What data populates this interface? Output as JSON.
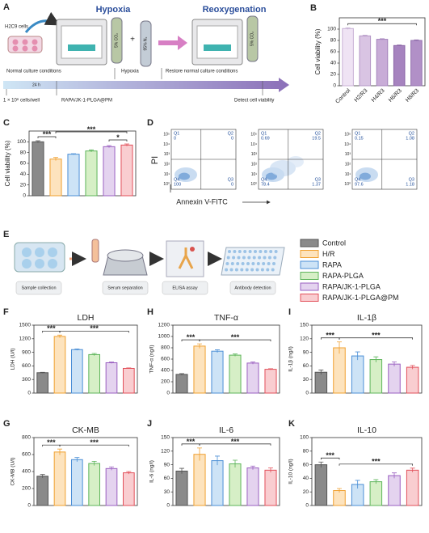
{
  "panel_a": {
    "label": "A",
    "hypoxia": "Hypoxia",
    "reoxygenation": "Reoxygenation",
    "cells": "H2C9 cells",
    "co2_left": "5% CO₂",
    "n2": "95% N₂",
    "co2_right": "5% CO₂",
    "plus": "+",
    "timeline": {
      "normal": "Normal culture conditions",
      "hypoxia": "Hypoxia",
      "restore": "Restore normal culture conditions",
      "duration": "24 h",
      "seeding": "1 × 10⁶ cells/well",
      "treatment": "RAPA/JK-1-PLGA@PM",
      "detect": "Detect cell viability"
    }
  },
  "panel_d": {
    "label": "D",
    "y_label": "PI",
    "x_label": "Annexin V-FITC",
    "yticks": [
      "10⁰",
      "10¹",
      "10²",
      "10³",
      "10⁴",
      "10⁵"
    ],
    "plots": [
      {
        "quadrants": [
          {
            "name": "Q1",
            "value": 0
          },
          {
            "name": "Q2",
            "value": 0
          },
          {
            "name": "Q4",
            "value": 100
          },
          {
            "name": "Q3",
            "value": 0
          }
        ]
      },
      {
        "quadrants": [
          {
            "name": "Q1",
            "value": 0.69
          },
          {
            "name": "Q2",
            "value": 19.5
          },
          {
            "name": "Q4",
            "value": 78.4
          },
          {
            "name": "Q3",
            "value": 1.37
          }
        ]
      },
      {
        "quadrants": [
          {
            "name": "Q1",
            "value": 0.15
          },
          {
            "name": "Q2",
            "value": 1.08
          },
          {
            "name": "Q4",
            "value": 97.6
          },
          {
            "name": "Q3",
            "value": 1.18
          }
        ]
      }
    ]
  },
  "panel_e": {
    "label": "E",
    "steps": [
      "Sample collection",
      "Serum separation",
      "ELISA assay",
      "Antibody detection"
    ],
    "legend": [
      {
        "name": "Control",
        "fill": "#8a8a8a",
        "edge": "#555555"
      },
      {
        "name": "H/R",
        "fill": "#fde3bd",
        "edge": "#f0a030"
      },
      {
        "name": "RAPA",
        "fill": "#cde3f6",
        "edge": "#4b8fd6"
      },
      {
        "name": "RAPA-PLGA",
        "fill": "#d6efc6",
        "edge": "#5db55a"
      },
      {
        "name": "RAPA/JK-1-PLGA",
        "fill": "#e4d3ef",
        "edge": "#9a5fc0"
      },
      {
        "name": "RAPA/JK-1-PLGA@PM",
        "fill": "#f9cdd0",
        "edge": "#e2505a"
      }
    ]
  },
  "chart_data": [
    {
      "type": "bar",
      "panel": "B",
      "y_label": "Cell viability (%)",
      "categories": [
        "Control",
        "H2/R3",
        "H4/R3",
        "H6/R3",
        "H8/R3"
      ],
      "values": [
        101,
        88,
        82,
        71,
        80
      ],
      "errors": [
        1.5,
        1,
        1,
        1,
        1
      ],
      "colors": [
        "#efe3f4",
        "#d9c4e3",
        "#c8acd7",
        "#a683bf",
        "#b190c7"
      ],
      "edge_colors": [
        "#c9b2d6",
        "#b497c6",
        "#a382bb",
        "#8a64a6",
        "#9270ad"
      ],
      "ylim": [
        0,
        120
      ],
      "yticks": [
        0,
        20,
        40,
        60,
        80,
        100
      ],
      "annotations": [
        "***"
      ]
    },
    {
      "type": "bar",
      "panel": "C",
      "y_label": "Cell viability (%)",
      "categories": [
        null,
        null,
        null,
        null,
        null,
        null
      ],
      "values": [
        100,
        68,
        77,
        83,
        91,
        94
      ],
      "errors": [
        2,
        3,
        1,
        2,
        2,
        2
      ],
      "colors": [
        "#8a8a8a",
        "#fde3bd",
        "#cde3f6",
        "#d6efc6",
        "#e4d3ef",
        "#f9cdd0"
      ],
      "edge_colors": [
        "#555555",
        "#f0a030",
        "#4b8fd6",
        "#5db55a",
        "#9a5fc0",
        "#e2505a"
      ],
      "ylim": [
        0,
        120
      ],
      "yticks": [
        0,
        20,
        40,
        60,
        80,
        100
      ],
      "annotations": [
        "***",
        "***",
        "*"
      ]
    },
    {
      "type": "bar",
      "panel": "F",
      "title": "LDH",
      "y_label": "LDH (U/l)",
      "categories": [
        null,
        null,
        null,
        null,
        null,
        null
      ],
      "values": [
        450,
        1250,
        960,
        850,
        670,
        545
      ],
      "errors": [
        10,
        30,
        15,
        25,
        15,
        10
      ],
      "colors": [
        "#8a8a8a",
        "#fde3bd",
        "#cde3f6",
        "#d6efc6",
        "#e4d3ef",
        "#f9cdd0"
      ],
      "edge_colors": [
        "#555555",
        "#f0a030",
        "#4b8fd6",
        "#5db55a",
        "#9a5fc0",
        "#e2505a"
      ],
      "ylim": [
        0,
        1500
      ],
      "yticks": [
        0,
        300,
        600,
        900,
        1200,
        1500
      ],
      "annotations": [
        "***",
        "***"
      ]
    },
    {
      "type": "bar",
      "panel": "H",
      "title": "TNF-α",
      "y_label": "TNF-α (ng/l)",
      "categories": [
        null,
        null,
        null,
        null,
        null,
        null
      ],
      "values": [
        330,
        830,
        740,
        670,
        530,
        420
      ],
      "errors": [
        15,
        40,
        25,
        20,
        20,
        10
      ],
      "colors": [
        "#8a8a8a",
        "#fde3bd",
        "#cde3f6",
        "#d6efc6",
        "#e4d3ef",
        "#f9cdd0"
      ],
      "edge_colors": [
        "#555555",
        "#f0a030",
        "#4b8fd6",
        "#5db55a",
        "#9a5fc0",
        "#e2505a"
      ],
      "ylim": [
        0,
        1200
      ],
      "yticks": [
        0,
        200,
        400,
        600,
        800,
        1000,
        1200
      ],
      "annotations": [
        "***",
        "***"
      ]
    },
    {
      "type": "bar",
      "panel": "I",
      "title": "IL-1β",
      "y_label": "IL-1β (ng/l)",
      "categories": [
        null,
        null,
        null,
        null,
        null,
        null
      ],
      "values": [
        46,
        100,
        82,
        74,
        64,
        57
      ],
      "errors": [
        5,
        13,
        9,
        6,
        5,
        4
      ],
      "colors": [
        "#8a8a8a",
        "#fde3bd",
        "#cde3f6",
        "#d6efc6",
        "#e4d3ef",
        "#f9cdd0"
      ],
      "edge_colors": [
        "#555555",
        "#f0a030",
        "#4b8fd6",
        "#5db55a",
        "#9a5fc0",
        "#e2505a"
      ],
      "ylim": [
        0,
        150
      ],
      "yticks": [
        0,
        30,
        60,
        90,
        120,
        150
      ],
      "annotations": [
        "***",
        "***"
      ]
    },
    {
      "type": "bar",
      "panel": "G",
      "title": "CK-MB",
      "y_label": "CK-MB (U/l)",
      "categories": [
        null,
        null,
        null,
        null,
        null,
        null
      ],
      "values": [
        345,
        630,
        540,
        495,
        435,
        385
      ],
      "errors": [
        20,
        35,
        25,
        25,
        20,
        15
      ],
      "colors": [
        "#8a8a8a",
        "#fde3bd",
        "#cde3f6",
        "#d6efc6",
        "#e4d3ef",
        "#f9cdd0"
      ],
      "edge_colors": [
        "#555555",
        "#f0a030",
        "#4b8fd6",
        "#5db55a",
        "#9a5fc0",
        "#e2505a"
      ],
      "ylim": [
        0,
        800
      ],
      "yticks": [
        0,
        200,
        400,
        600,
        800
      ],
      "annotations": [
        "***",
        "***"
      ]
    },
    {
      "type": "bar",
      "panel": "J",
      "title": "IL-6",
      "y_label": "IL-6 (ng/l)",
      "categories": [
        null,
        null,
        null,
        null,
        null,
        null
      ],
      "values": [
        76,
        113,
        99,
        92,
        83,
        78
      ],
      "errors": [
        6,
        14,
        10,
        8,
        4,
        5
      ],
      "colors": [
        "#8a8a8a",
        "#fde3bd",
        "#cde3f6",
        "#d6efc6",
        "#e4d3ef",
        "#f9cdd0"
      ],
      "edge_colors": [
        "#555555",
        "#f0a030",
        "#4b8fd6",
        "#5db55a",
        "#9a5fc0",
        "#e2505a"
      ],
      "ylim": [
        0,
        150
      ],
      "yticks": [
        0,
        30,
        60,
        90,
        120,
        150
      ],
      "annotations": [
        "***",
        "***"
      ]
    },
    {
      "type": "bar",
      "panel": "K",
      "title": "IL-10",
      "y_label": "IL-10 (ng/l)",
      "categories": [
        null,
        null,
        null,
        null,
        null,
        null
      ],
      "values": [
        60,
        22,
        31,
        35,
        44,
        52
      ],
      "errors": [
        4,
        3,
        6,
        3,
        4,
        3
      ],
      "colors": [
        "#8a8a8a",
        "#fde3bd",
        "#cde3f6",
        "#d6efc6",
        "#e4d3ef",
        "#f9cdd0"
      ],
      "edge_colors": [
        "#555555",
        "#f0a030",
        "#4b8fd6",
        "#5db55a",
        "#9a5fc0",
        "#e2505a"
      ],
      "ylim": [
        0,
        100
      ],
      "yticks": [
        0,
        20,
        40,
        60,
        80,
        100
      ],
      "annotations": [
        "***",
        "***"
      ]
    }
  ]
}
